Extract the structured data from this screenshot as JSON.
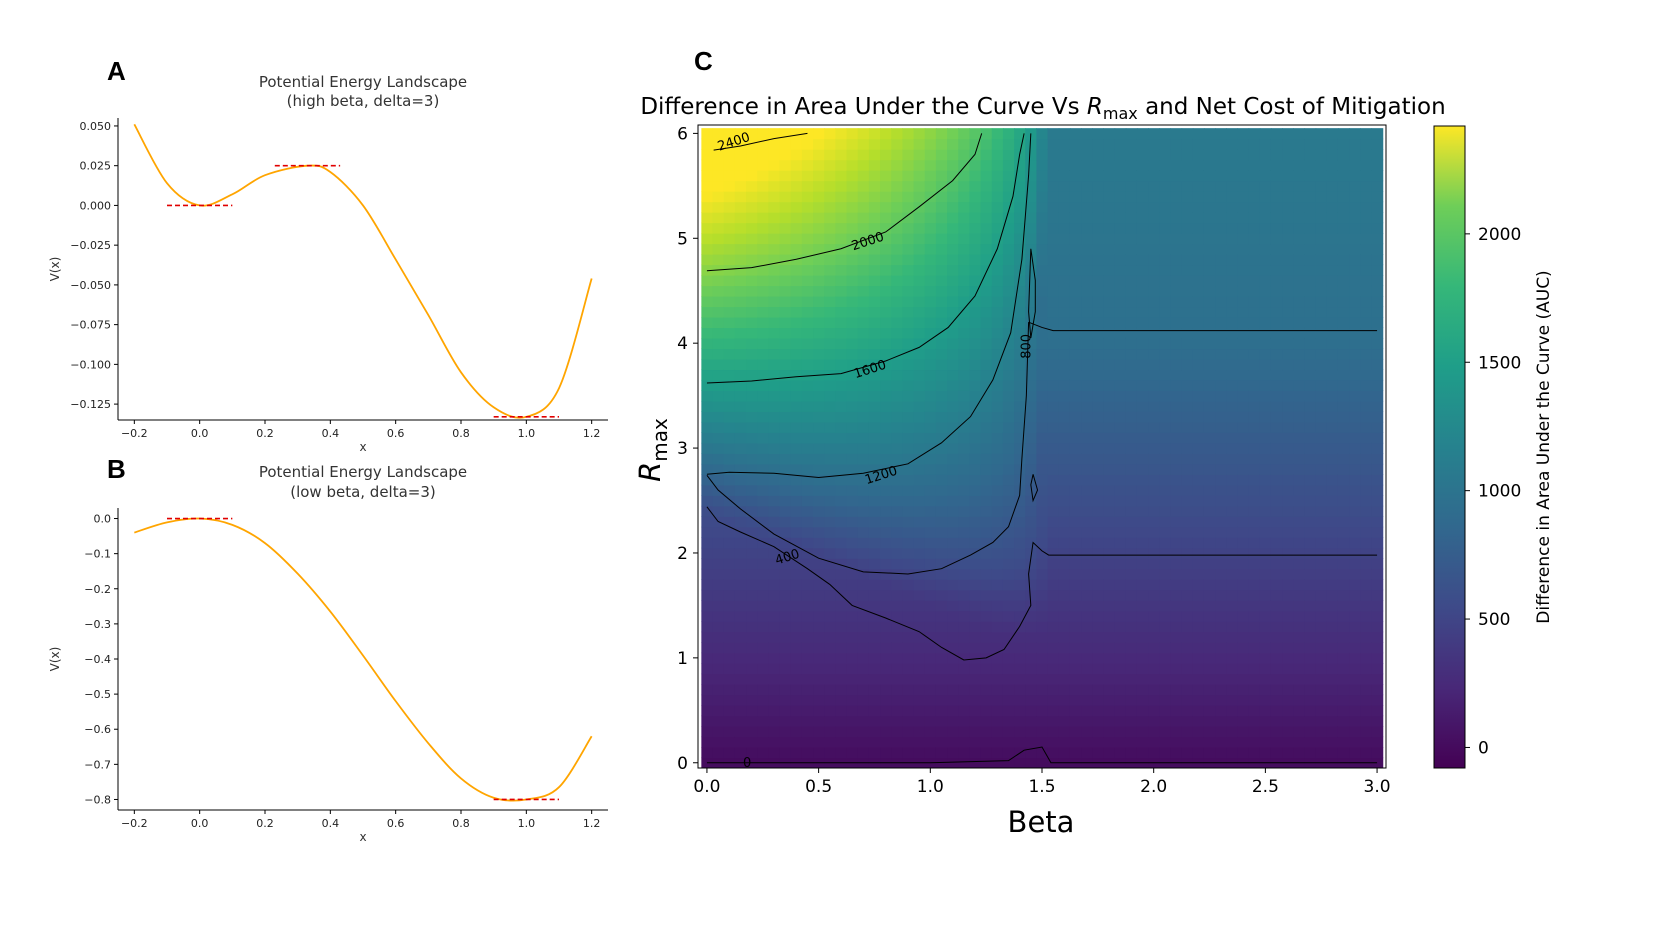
{
  "panels": {
    "a": "A",
    "b": "B",
    "c": "C"
  },
  "chart_data": [
    {
      "id": "A",
      "type": "line",
      "title": "Potential Energy Landscape",
      "subtitle": "(high beta, delta=3)",
      "xlabel": "x",
      "ylabel": "V(x)",
      "xlim": [
        -0.25,
        1.25
      ],
      "ylim": [
        -0.135,
        0.055
      ],
      "xticks": [
        "−0.2",
        "0.0",
        "0.2",
        "0.4",
        "0.6",
        "0.8",
        "1.0",
        "1.2"
      ],
      "xtick_values": [
        -0.2,
        0.0,
        0.2,
        0.4,
        0.6,
        0.8,
        1.0,
        1.2
      ],
      "yticks": [
        "0.050",
        "0.025",
        "0.000",
        "−0.025",
        "−0.050",
        "−0.075",
        "−0.100",
        "−0.125"
      ],
      "ytick_values": [
        0.05,
        0.025,
        0.0,
        -0.025,
        -0.05,
        -0.075,
        -0.1,
        -0.125
      ],
      "curve_color": "#FFA500",
      "marker_color": "#E00000",
      "series": [
        {
          "x": [
            -0.2,
            -0.1,
            0.0,
            0.1,
            0.2,
            0.33,
            0.4,
            0.5,
            0.6,
            0.7,
            0.8,
            0.9,
            1.0,
            1.1,
            1.2
          ],
          "values": [
            0.051,
            0.014,
            0.0,
            0.007,
            0.019,
            0.025,
            0.021,
            0.0,
            -0.034,
            -0.069,
            -0.105,
            -0.127,
            -0.133,
            -0.115,
            -0.046
          ]
        }
      ],
      "level_markers": [
        {
          "x": [
            -0.1,
            0.1
          ],
          "y": 0.0
        },
        {
          "x": [
            0.23,
            0.43
          ],
          "y": 0.025
        },
        {
          "x": [
            0.9,
            1.1
          ],
          "y": -0.133
        }
      ]
    },
    {
      "id": "B",
      "type": "line",
      "title": "Potential Energy Landscape",
      "subtitle": "(low beta, delta=3)",
      "xlabel": "x",
      "ylabel": "V(x)",
      "xlim": [
        -0.25,
        1.25
      ],
      "ylim": [
        -0.83,
        0.03
      ],
      "xticks": [
        "−0.2",
        "0.0",
        "0.2",
        "0.4",
        "0.6",
        "0.8",
        "1.0",
        "1.2"
      ],
      "xtick_values": [
        -0.2,
        0.0,
        0.2,
        0.4,
        0.6,
        0.8,
        1.0,
        1.2
      ],
      "yticks": [
        "0.0",
        "−0.1",
        "−0.2",
        "−0.3",
        "−0.4",
        "−0.5",
        "−0.6",
        "−0.7",
        "−0.8"
      ],
      "ytick_values": [
        0.0,
        -0.1,
        -0.2,
        -0.3,
        -0.4,
        -0.5,
        -0.6,
        -0.7,
        -0.8
      ],
      "curve_color": "#FFA500",
      "marker_color": "#E00000",
      "series": [
        {
          "x": [
            -0.2,
            -0.1,
            0.0,
            0.1,
            0.2,
            0.3,
            0.4,
            0.5,
            0.6,
            0.7,
            0.8,
            0.9,
            1.0,
            1.1,
            1.2
          ],
          "values": [
            -0.04,
            -0.011,
            0.0,
            -0.018,
            -0.07,
            -0.157,
            -0.265,
            -0.39,
            -0.52,
            -0.64,
            -0.74,
            -0.795,
            -0.8,
            -0.765,
            -0.62
          ]
        }
      ],
      "level_markers": [
        {
          "x": [
            -0.1,
            0.1
          ],
          "y": 0.0
        },
        {
          "x": [
            0.9,
            1.1
          ],
          "y": -0.8
        }
      ]
    },
    {
      "id": "C",
      "type": "heatmap",
      "title_main": "Difference in Area Under the Curve Vs ",
      "title_sym": "R",
      "title_sub": "max",
      "title_tail": " and Net Cost of Mitigation",
      "xlabel": "Beta",
      "ylabel_sym": "R",
      "ylabel_sub": "max",
      "xlim": [
        -0.04,
        3.04
      ],
      "ylim": [
        -0.05,
        6.08
      ],
      "xticks": [
        "0.0",
        "0.5",
        "1.0",
        "1.5",
        "2.0",
        "2.5",
        "3.0"
      ],
      "xtick_values": [
        0.0,
        0.5,
        1.0,
        1.5,
        2.0,
        2.5,
        3.0
      ],
      "yticks": [
        "0",
        "1",
        "2",
        "3",
        "4",
        "5",
        "6"
      ],
      "ytick_values": [
        0,
        1,
        2,
        3,
        4,
        5,
        6
      ],
      "colormap": "viridis",
      "colorbar": {
        "label": "Difference in Area Under the Curve (AUC)",
        "range": [
          -80,
          2420
        ],
        "ticks": [
          "0",
          "500",
          "1000",
          "1500",
          "2000"
        ],
        "tick_values": [
          0,
          500,
          1000,
          1500,
          2000
        ]
      },
      "contours": [
        {
          "level": "2400",
          "label_at": [
            0.12,
            5.92
          ],
          "points": [
            [
              0.03,
              5.84
            ],
            [
              0.15,
              5.88
            ],
            [
              0.3,
              5.95
            ],
            [
              0.45,
              6.0
            ]
          ]
        },
        {
          "level": "2000",
          "label_at": [
            0.72,
            4.97
          ],
          "points": [
            [
              0.0,
              4.69
            ],
            [
              0.2,
              4.72
            ],
            [
              0.4,
              4.8
            ],
            [
              0.6,
              4.9
            ],
            [
              0.8,
              5.06
            ],
            [
              0.95,
              5.3
            ],
            [
              1.1,
              5.55
            ],
            [
              1.2,
              5.8
            ],
            [
              1.23,
              6.0
            ]
          ]
        },
        {
          "level": "1600",
          "label_at": [
            0.73,
            3.75
          ],
          "points": [
            [
              0.0,
              3.62
            ],
            [
              0.2,
              3.64
            ],
            [
              0.4,
              3.68
            ],
            [
              0.6,
              3.71
            ],
            [
              0.8,
              3.83
            ],
            [
              0.95,
              3.96
            ],
            [
              1.08,
              4.15
            ],
            [
              1.2,
              4.45
            ],
            [
              1.3,
              4.9
            ],
            [
              1.37,
              5.4
            ],
            [
              1.4,
              5.8
            ],
            [
              1.42,
              6.0
            ]
          ]
        },
        {
          "level": "1200",
          "label_at": [
            0.78,
            2.74
          ],
          "points": [
            [
              0.0,
              2.75
            ],
            [
              0.1,
              2.77
            ],
            [
              0.3,
              2.76
            ],
            [
              0.5,
              2.72
            ],
            [
              0.7,
              2.76
            ],
            [
              0.9,
              2.85
            ],
            [
              1.05,
              3.05
            ],
            [
              1.18,
              3.3
            ],
            [
              1.28,
              3.65
            ],
            [
              1.36,
              4.1
            ],
            [
              1.41,
              4.8
            ],
            [
              1.44,
              5.6
            ],
            [
              1.45,
              6.0
            ]
          ]
        },
        {
          "level": "400",
          "label_at": [
            0.36,
            1.96
          ],
          "points": [
            [
              0.0,
              2.74
            ],
            [
              0.05,
              2.6
            ],
            [
              0.15,
              2.42
            ],
            [
              0.3,
              2.18
            ],
            [
              0.5,
              1.95
            ],
            [
              0.7,
              1.82
            ],
            [
              0.9,
              1.8
            ],
            [
              1.05,
              1.85
            ],
            [
              1.18,
              1.98
            ],
            [
              1.28,
              2.1
            ],
            [
              1.35,
              2.25
            ],
            [
              1.4,
              2.55
            ],
            [
              1.41,
              2.9
            ],
            [
              1.43,
              3.5
            ],
            [
              1.44,
              4.2
            ]
          ]
        },
        {
          "level": "800",
          "label_at": [
            1.43,
            3.97
          ],
          "points": [
            [
              1.45,
              4.9
            ],
            [
              1.47,
              4.6
            ],
            [
              1.47,
              4.3
            ],
            [
              1.45,
              4.05
            ],
            [
              1.44,
              4.3
            ],
            [
              1.45,
              4.9
            ]
          ]
        },
        {
          "level": "0",
          "label_at": [
            0.18,
            0.0
          ],
          "points": [
            [
              0.0,
              0.0
            ],
            [
              0.5,
              0.0
            ],
            [
              1.0,
              0.0
            ],
            [
              1.35,
              0.02
            ],
            [
              1.42,
              0.12
            ],
            [
              1.5,
              0.15
            ],
            [
              1.54,
              0.0
            ],
            [
              2.0,
              0.0
            ],
            [
              3.0,
              0.0
            ]
          ]
        },
        {
          "level": "",
          "label_at": null,
          "points": [
            [
              0.0,
              2.44
            ],
            [
              0.05,
              2.3
            ],
            [
              0.15,
              2.2
            ],
            [
              0.3,
              2.06
            ],
            [
              0.45,
              1.85
            ],
            [
              0.55,
              1.7
            ],
            [
              0.65,
              1.5
            ],
            [
              0.8,
              1.38
            ],
            [
              0.95,
              1.25
            ],
            [
              1.05,
              1.1
            ],
            [
              1.15,
              0.98
            ],
            [
              1.25,
              1.0
            ],
            [
              1.33,
              1.08
            ],
            [
              1.4,
              1.3
            ],
            [
              1.45,
              1.5
            ],
            [
              1.44,
              1.8
            ],
            [
              1.46,
              2.1
            ],
            [
              1.5,
              2.02
            ],
            [
              1.53,
              1.98
            ],
            [
              2.0,
              1.98
            ],
            [
              3.0,
              1.98
            ]
          ]
        },
        {
          "level": "",
          "label_at": null,
          "points": [
            [
              1.44,
              4.2
            ],
            [
              1.5,
              4.15
            ],
            [
              1.55,
              4.12
            ],
            [
              2.0,
              4.12
            ],
            [
              3.0,
              4.12
            ]
          ]
        },
        {
          "level": "",
          "label_at": null,
          "points": [
            [
              1.46,
              2.75
            ],
            [
              1.48,
              2.6
            ],
            [
              1.46,
              2.5
            ],
            [
              1.45,
              2.65
            ],
            [
              1.46,
              2.75
            ]
          ]
        }
      ]
    }
  ]
}
